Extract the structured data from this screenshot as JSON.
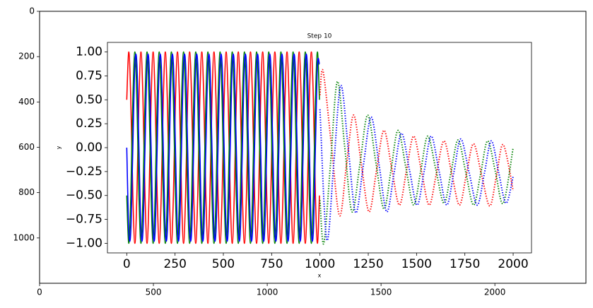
{
  "chart_data": [
    {
      "type": "image",
      "xlim": [
        0,
        2400
      ],
      "ylim": [
        1200,
        0
      ],
      "xticks": [
        0,
        500,
        1000,
        1500,
        2000
      ],
      "yticks": [
        0,
        200,
        400,
        600,
        800,
        1000
      ]
    },
    {
      "type": "line",
      "title": "Step 10",
      "x_label": "x",
      "y_label": "y",
      "xlim": [
        -100,
        2095
      ],
      "ylim": [
        -1.1,
        1.1
      ],
      "xticks": [
        0,
        250,
        500,
        750,
        1000,
        1250,
        1500,
        1750,
        2000
      ],
      "yticks": [
        {
          "value": -1,
          "label": "−1.00"
        },
        {
          "value": -0.75,
          "label": "−0.75"
        },
        {
          "value": -0.5,
          "label": "−0.50"
        },
        {
          "value": -0.25,
          "label": "−0.25"
        },
        {
          "value": 0,
          "label": "0.00"
        },
        {
          "value": 0.25,
          "label": "0.25"
        },
        {
          "value": 0.5,
          "label": "0.50"
        },
        {
          "value": 0.75,
          "label": "0.75"
        },
        {
          "value": 1,
          "label": "1.00"
        }
      ],
      "series": [
        {
          "color": "#ff0000",
          "style": "solid",
          "x": [
            0,
            10.5,
            21,
            31.5,
            42,
            52.5,
            63,
            73.5,
            84,
            94.5,
            105,
            115.5,
            126,
            136.5,
            147,
            157.5,
            168,
            178.5,
            189,
            199.5,
            210,
            220.5,
            231,
            241.5,
            252,
            262.5,
            273,
            283.5,
            294,
            304.5,
            315,
            325.5,
            336,
            346.5,
            357,
            367.5,
            378,
            388.5,
            399,
            409.5,
            420,
            430.5,
            441,
            451.5,
            462,
            472.5,
            483,
            493.5,
            504,
            514.5,
            525,
            535.5,
            546,
            556.5,
            567,
            577.5,
            588,
            598.5,
            609,
            619.5,
            630,
            640.5,
            651,
            661.5,
            672,
            682.5,
            693,
            703.5,
            714,
            724.5,
            735,
            745.5,
            756,
            766.5,
            777,
            787.5,
            798,
            808.5,
            819,
            829.5,
            840,
            850.5,
            861,
            871.5,
            882,
            892.5,
            903,
            913.5,
            924,
            934.5,
            945,
            955.5,
            966,
            976.5,
            987,
            997.5
          ],
          "values": [
            0.5,
            1,
            0.5,
            -0.5,
            -1,
            -0.5,
            0.5,
            1,
            0.5,
            -0.5,
            -1,
            -0.5,
            0.5,
            1,
            0.5,
            -0.5,
            -1,
            -0.5,
            0.5,
            1,
            0.5,
            -0.5,
            -1,
            -0.5,
            0.5,
            1,
            0.5,
            -0.5,
            -1,
            -0.5,
            0.5,
            1,
            0.5,
            -0.5,
            -1,
            -0.5,
            0.5,
            1,
            0.5,
            -0.5,
            -1,
            -0.5,
            0.5,
            1,
            0.5,
            -0.5,
            -1,
            -0.5,
            0.5,
            1,
            0.5,
            -0.5,
            -1,
            -0.5,
            0.5,
            1,
            0.5,
            -0.5,
            -1,
            -0.5,
            0.5,
            1,
            0.5,
            -0.5,
            -1,
            -0.5,
            0.5,
            1,
            0.5,
            -0.5,
            -1,
            -0.5,
            0.5,
            1,
            0.5,
            -0.5,
            -1,
            -0.5,
            0.5,
            1,
            0.5,
            -0.5,
            -1,
            -0.5,
            0.5,
            1,
            0.5,
            -0.5,
            -1,
            -0.5,
            0.5,
            1,
            0.5,
            -0.5,
            -1,
            -0.5
          ]
        },
        {
          "color": "#008000",
          "style": "solid",
          "x": [
            0,
            10.5,
            21,
            31.5,
            42,
            52.5,
            63,
            73.5,
            84,
            94.5,
            105,
            115.5,
            126,
            136.5,
            147,
            157.5,
            168,
            178.5,
            189,
            199.5,
            210,
            220.5,
            231,
            241.5,
            252,
            262.5,
            273,
            283.5,
            294,
            304.5,
            315,
            325.5,
            336,
            346.5,
            357,
            367.5,
            378,
            388.5,
            399,
            409.5,
            420,
            430.5,
            441,
            451.5,
            462,
            472.5,
            483,
            493.5,
            504,
            514.5,
            525,
            535.5,
            546,
            556.5,
            567,
            577.5,
            588,
            598.5,
            609,
            619.5,
            630,
            640.5,
            651,
            661.5,
            672,
            682.5,
            693,
            703.5,
            714,
            724.5,
            735,
            745.5,
            756,
            766.5,
            777,
            787.5,
            798,
            808.5,
            819,
            829.5,
            840,
            850.5,
            861,
            871.5,
            882,
            892.5,
            903,
            913.5,
            924,
            934.5,
            945,
            955.5,
            966,
            976.5,
            987,
            997.5
          ],
          "values": [
            -0.5,
            -1,
            -0.5,
            0.5,
            1,
            0.5,
            -0.5,
            -1,
            -0.5,
            0.5,
            1,
            0.5,
            -0.5,
            -1,
            -0.5,
            0.5,
            1,
            0.5,
            -0.5,
            -1,
            -0.5,
            0.5,
            1,
            0.5,
            -0.5,
            -1,
            -0.5,
            0.5,
            1,
            0.5,
            -0.5,
            -1,
            -0.5,
            0.5,
            1,
            0.5,
            -0.5,
            -1,
            -0.5,
            0.5,
            1,
            0.5,
            -0.5,
            -1,
            -0.5,
            0.5,
            1,
            0.5,
            -0.5,
            -1,
            -0.5,
            0.5,
            1,
            0.5,
            -0.5,
            -1,
            -0.5,
            0.5,
            1,
            0.5,
            -0.5,
            -1,
            -0.5,
            0.5,
            1,
            0.5,
            -0.5,
            -1,
            -0.5,
            0.5,
            1,
            0.5,
            -0.5,
            -1,
            -0.5,
            0.5,
            1,
            0.5,
            -0.5,
            -1,
            -0.5,
            0.5,
            1,
            0.5,
            -0.5,
            -1,
            -0.5,
            0.5,
            1,
            0.5,
            -0.5,
            -1,
            -0.5,
            0.5,
            1,
            0.5
          ]
        },
        {
          "color": "#0000ff",
          "style": "solid",
          "x": [
            0,
            10.5,
            21,
            31.5,
            42,
            52.5,
            63,
            73.5,
            84,
            94.5,
            105,
            115.5,
            126,
            136.5,
            147,
            157.5,
            168,
            178.5,
            189,
            199.5,
            210,
            220.5,
            231,
            241.5,
            252,
            262.5,
            273,
            283.5,
            294,
            304.5,
            315,
            325.5,
            336,
            346.5,
            357,
            367.5,
            378,
            388.5,
            399,
            409.5,
            420,
            430.5,
            441,
            451.5,
            462,
            472.5,
            483,
            493.5,
            504,
            514.5,
            525,
            535.5,
            546,
            556.5,
            567,
            577.5,
            588,
            598.5,
            609,
            619.5,
            630,
            640.5,
            651,
            661.5,
            672,
            682.5,
            693,
            703.5,
            714,
            724.5,
            735,
            745.5,
            756,
            766.5,
            777,
            787.5,
            798,
            808.5,
            819,
            829.5,
            840,
            850.5,
            861,
            871.5,
            882,
            892.5,
            903,
            913.5,
            924,
            934.5,
            945,
            955.5,
            966,
            976.5,
            987,
            997.5
          ],
          "values": [
            0,
            -0.87,
            -0.87,
            0,
            0.87,
            0.87,
            0,
            -0.87,
            -0.87,
            0,
            0.87,
            0.87,
            0,
            -0.87,
            -0.87,
            0,
            0.87,
            0.87,
            0,
            -0.87,
            -0.87,
            0,
            0.87,
            0.87,
            0,
            -0.87,
            -0.87,
            0,
            0.87,
            0.87,
            0,
            -0.87,
            -0.87,
            0,
            0.87,
            0.87,
            0,
            -0.87,
            -0.87,
            0,
            0.87,
            0.87,
            0,
            -0.87,
            -0.87,
            0,
            0.87,
            0.87,
            0,
            -0.87,
            -0.87,
            0,
            0.87,
            0.87,
            0,
            -0.87,
            -0.87,
            0,
            0.87,
            0.87,
            0,
            -0.87,
            -0.87,
            0,
            0.87,
            0.87,
            0,
            -0.87,
            -0.87,
            0,
            0.87,
            0.87,
            0,
            -0.87,
            -0.87,
            0,
            0.87,
            0.87,
            0,
            -0.87,
            -0.87,
            0,
            0.87,
            0.87,
            0,
            -0.87,
            -0.87,
            0,
            0.87,
            0.87,
            0,
            -0.87,
            -0.87,
            0,
            0.87,
            0.87
          ]
        },
        {
          "color": "#ff0000",
          "style": "dotted",
          "x": [
            1000,
            1016,
            1058,
            1101,
            1137,
            1174,
            1214,
            1254,
            1292,
            1331,
            1371,
            1411,
            1448,
            1485,
            1525,
            1565,
            1603,
            1642,
            1682,
            1722,
            1758,
            1795,
            1837,
            1879,
            1914,
            1949,
            2000
          ],
          "values": [
            0.55,
            0.8,
            0.05,
            -0.71,
            -0.19,
            0.34,
            -0.17,
            -0.67,
            -0.25,
            0.18,
            -0.21,
            -0.6,
            -0.24,
            0.12,
            -0.24,
            -0.6,
            -0.27,
            0.07,
            -0.27,
            -0.6,
            -0.28,
            0.04,
            -0.29,
            -0.61,
            -0.29,
            0.03,
            -0.45
          ]
        },
        {
          "color": "#008000",
          "style": "dotted",
          "x": [
            1000,
            1020,
            1055,
            1090,
            1128,
            1166,
            1207,
            1247,
            1289,
            1331,
            1368,
            1404,
            1445,
            1485,
            1522,
            1558,
            1600,
            1642,
            1679,
            1715,
            1755,
            1795,
            1832,
            1868,
            1909,
            1949,
            2000
          ],
          "values": [
            -0.55,
            -1,
            -0.16,
            0.69,
            0.01,
            -0.67,
            -0.17,
            0.34,
            -0.15,
            -0.64,
            -0.23,
            0.18,
            -0.21,
            -0.6,
            -0.24,
            0.12,
            -0.23,
            -0.58,
            -0.25,
            0.08,
            -0.26,
            -0.6,
            -0.27,
            0.07,
            -0.26,
            -0.58,
            0
          ]
        },
        {
          "color": "#0000ff",
          "style": "dotted",
          "x": [
            1000,
            1035,
            1072,
            1108,
            1147,
            1185,
            1225,
            1265,
            1306,
            1346,
            1384,
            1422,
            1463,
            1503,
            1540,
            1576,
            1616,
            1656,
            1693,
            1729,
            1772,
            1814,
            1851,
            1887,
            1925,
            1963,
            2000
          ],
          "values": [
            0.4,
            -0.96,
            -0.16,
            0.65,
            -0.02,
            -0.68,
            -0.18,
            0.32,
            -0.18,
            -0.67,
            -0.26,
            0.15,
            -0.23,
            -0.6,
            -0.24,
            0.12,
            -0.24,
            -0.6,
            -0.26,
            0.09,
            -0.26,
            -0.6,
            -0.27,
            0.07,
            -0.26,
            -0.58,
            -0.3
          ]
        }
      ]
    }
  ]
}
